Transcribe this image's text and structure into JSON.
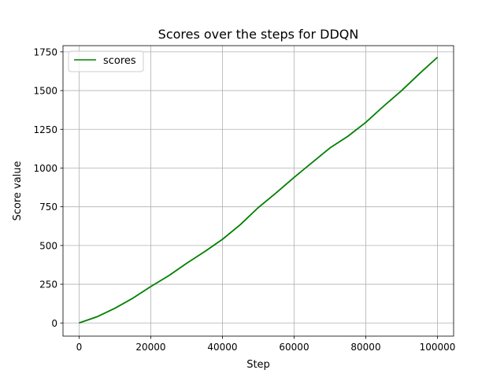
{
  "chart_data": {
    "type": "line",
    "title": "Scores over the steps for DDQN",
    "xlabel": "Step",
    "ylabel": "Score value",
    "xlim": [
      -4500,
      104500
    ],
    "ylim": [
      -85,
      1790
    ],
    "xticks": [
      0,
      20000,
      40000,
      60000,
      80000,
      100000
    ],
    "xtick_labels": [
      "0",
      "20000",
      "40000",
      "60000",
      "80000",
      "100000"
    ],
    "yticks": [
      0,
      250,
      500,
      750,
      1000,
      1250,
      1500,
      1750
    ],
    "ytick_labels": [
      "0",
      "250",
      "500",
      "750",
      "1000",
      "1250",
      "1500",
      "1750"
    ],
    "grid": true,
    "legend_position": "upper left",
    "series": [
      {
        "name": "scores",
        "color": "#008000",
        "x": [
          0,
          5000,
          10000,
          15000,
          20000,
          25000,
          30000,
          35000,
          40000,
          45000,
          50000,
          55000,
          60000,
          65000,
          70000,
          75000,
          80000,
          85000,
          90000,
          95000,
          100000
        ],
        "y": [
          0,
          40,
          95,
          160,
          235,
          305,
          385,
          460,
          540,
          635,
          745,
          840,
          940,
          1035,
          1130,
          1205,
          1295,
          1400,
          1500,
          1610,
          1715
        ]
      }
    ]
  }
}
